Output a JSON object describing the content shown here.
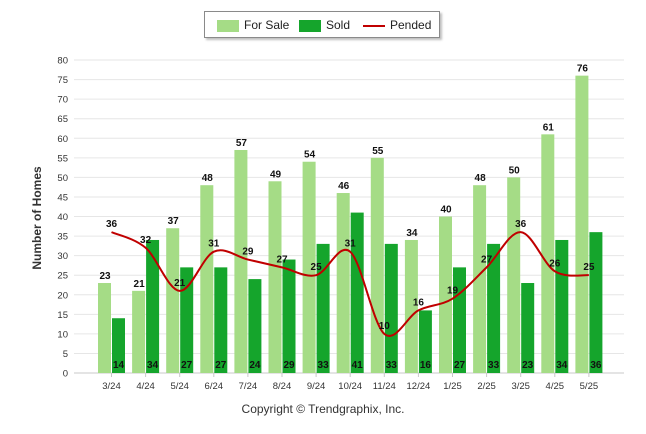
{
  "chart_data": {
    "type": "bar",
    "categories": [
      "3/24",
      "4/24",
      "5/24",
      "6/24",
      "7/24",
      "8/24",
      "9/24",
      "10/24",
      "11/24",
      "12/24",
      "1/25",
      "2/25",
      "3/25",
      "4/25",
      "5/25"
    ],
    "series": [
      {
        "name": "For Sale",
        "type": "bar",
        "color": "#a5dc86",
        "values": [
          23,
          21,
          37,
          48,
          57,
          49,
          54,
          46,
          55,
          34,
          40,
          48,
          50,
          61,
          76
        ]
      },
      {
        "name": "Sold",
        "type": "bar",
        "color": "#15a52c",
        "values": [
          14,
          34,
          27,
          27,
          24,
          29,
          33,
          41,
          33,
          16,
          27,
          33,
          23,
          34,
          36
        ]
      },
      {
        "name": "Pended",
        "type": "line",
        "color": "#c00000",
        "values": [
          36,
          32,
          21,
          31,
          29,
          27,
          25,
          31,
          10,
          16,
          19,
          27,
          36,
          26,
          25
        ]
      }
    ],
    "ylabel": "Number of Homes",
    "xlabel": "",
    "ylim": [
      0,
      80
    ],
    "yticks": [
      0,
      5,
      10,
      15,
      20,
      25,
      30,
      35,
      40,
      45,
      50,
      55,
      60,
      65,
      70,
      75,
      80
    ],
    "grid": true,
    "legend": "top-center"
  },
  "footer": {
    "copyright": "Copyright © Trendgraphix, Inc."
  }
}
